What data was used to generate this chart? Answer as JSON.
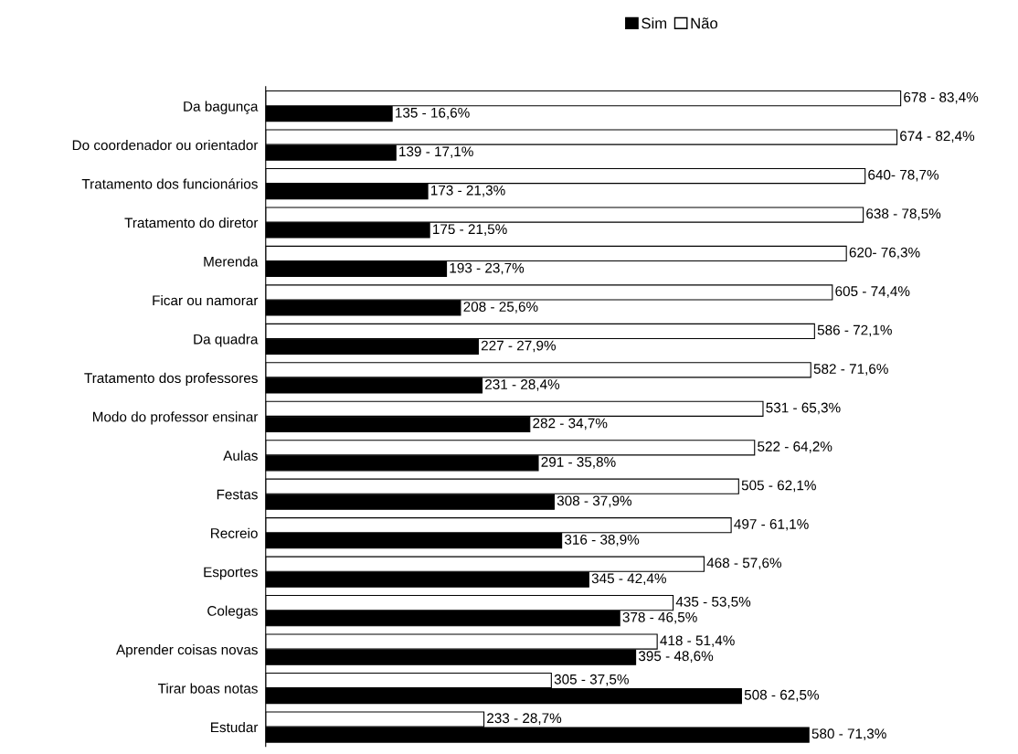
{
  "chart_data": {
    "type": "bar",
    "orientation": "horizontal",
    "legend": "top",
    "grid": false,
    "categories": [
      "Da bagunça",
      "Do coordenador ou orientador",
      "Tratamento dos funcionários",
      "Tratamento do diretor",
      "Merenda",
      "Ficar ou namorar",
      "Da quadra",
      "Tratamento dos professores",
      "Modo do professor ensinar",
      "Aulas",
      "Festas",
      "Recreio",
      "Esportes",
      "Colegas",
      "Aprender coisas novas",
      "Tirar boas notas",
      "Estudar"
    ],
    "series": [
      {
        "name": "Sim",
        "color": "#000000",
        "values": [
          135,
          139,
          173,
          175,
          193,
          208,
          227,
          231,
          282,
          291,
          308,
          316,
          345,
          378,
          395,
          508,
          580
        ],
        "value_labels": [
          "135 - 16,6%",
          "139 - 17,1%",
          "173 - 21,3%",
          "175 - 21,5%",
          "193 - 23,7%",
          "208 - 25,6%",
          "227 - 27,9%",
          "231 - 28,4%",
          "282 - 34,7%",
          "291 - 35,8%",
          "308 - 37,9%",
          "316 - 38,9%",
          "345 - 42,4%",
          "378 - 46,5%",
          "395 - 48,6%",
          "508 - 62,5%",
          "580 - 71,3%"
        ]
      },
      {
        "name": "Não",
        "color": "#ffffff",
        "values": [
          678,
          674,
          640,
          638,
          620,
          605,
          586,
          582,
          531,
          522,
          505,
          497,
          468,
          435,
          418,
          305,
          233
        ],
        "value_labels": [
          "678 - 83,4%",
          "674 - 82,4%",
          "640- 78,7%",
          "638 - 78,5%",
          "620- 76,3%",
          "605 - 74,4%",
          "586 - 72,1%",
          "582 - 71,6%",
          "531 - 65,3%",
          "522 - 64,2%",
          "505 - 62,1%",
          "497 - 61,1%",
          "468 - 57,6%",
          "435 - 53,5%",
          "418 - 51,4%",
          "305 - 37,5%",
          "233 - 28,7%"
        ]
      }
    ]
  }
}
